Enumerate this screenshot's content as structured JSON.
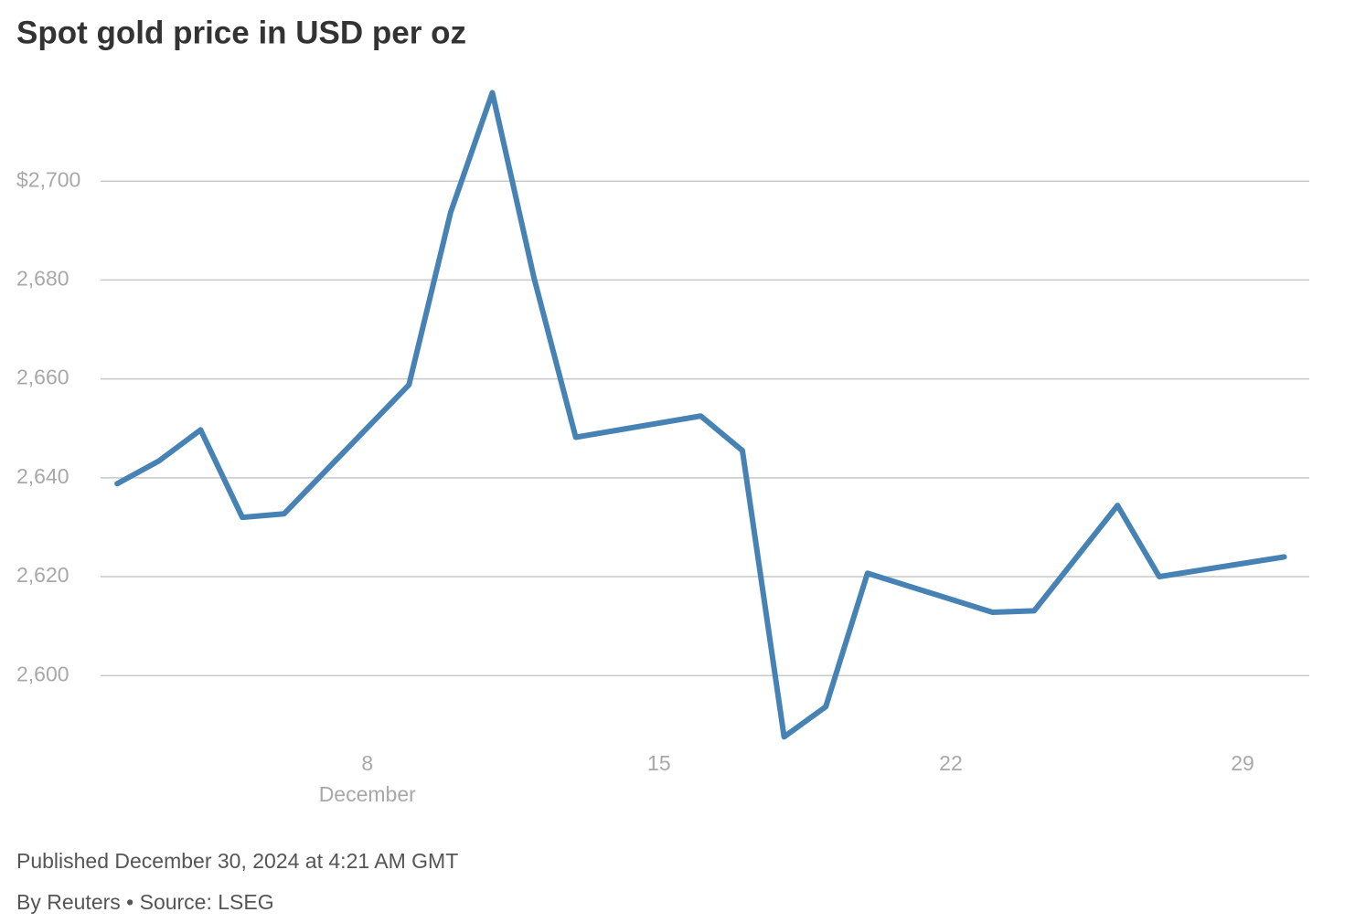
{
  "chart_data": {
    "type": "line",
    "title": "Spot gold price in USD per oz",
    "x": [
      2,
      3,
      4,
      5,
      6,
      9,
      10,
      11,
      12,
      13,
      16,
      17,
      18,
      19,
      20,
      23,
      24,
      26,
      27,
      30
    ],
    "values": [
      2638.8,
      2643.4,
      2649.7,
      2632.0,
      2632.7,
      2658.8,
      2693.7,
      2717.9,
      2680.4,
      2648.2,
      2652.5,
      2645.5,
      2587.6,
      2593.7,
      2620.7,
      2612.8,
      2613.1,
      2634.4,
      2620.0,
      2624.0
    ],
    "color": "#4682b4",
    "xlim": [
      1.6,
      30.6
    ],
    "xticks": [
      8,
      15,
      22,
      29
    ],
    "x_month_label": "December",
    "ylim": [
      2586,
      2720
    ],
    "yticks": [
      {
        "value": 2600,
        "label": "2,600"
      },
      {
        "value": 2620,
        "label": "2,620"
      },
      {
        "value": 2640,
        "label": "2,640"
      },
      {
        "value": 2660,
        "label": "2,660"
      },
      {
        "value": 2680,
        "label": "2,680"
      },
      {
        "value": 2700,
        "label": "$2,700"
      }
    ],
    "grid": true,
    "published": "Published December 30, 2024 at 4:21 AM GMT",
    "source": "By Reuters • Source: LSEG"
  }
}
